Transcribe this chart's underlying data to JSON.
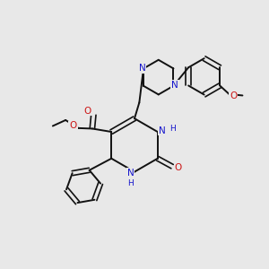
{
  "bg_color": "#e8e8e8",
  "bond_color": "#111111",
  "N_color": "#1414cc",
  "O_color": "#cc1414",
  "figsize": [
    3.0,
    3.0
  ],
  "dpi": 100,
  "xlim": [
    0,
    10
  ],
  "ylim": [
    0,
    10
  ]
}
